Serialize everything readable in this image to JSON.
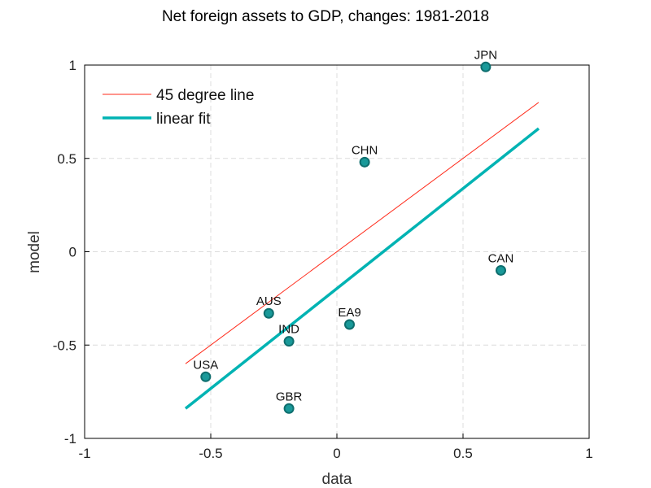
{
  "chart_data": {
    "type": "scatter",
    "title": "Net foreign assets to GDP, changes: 1981-2018",
    "xlabel": "data",
    "ylabel": "model",
    "xlim": [
      -1,
      1
    ],
    "ylim": [
      -1,
      1
    ],
    "x_ticks": [
      -1,
      -0.5,
      0,
      0.5,
      1
    ],
    "y_ticks": [
      -1,
      -0.5,
      0,
      0.5,
      1
    ],
    "x_tick_labels": [
      "-1",
      "-0.5",
      "0",
      "0.5",
      "1"
    ],
    "y_tick_labels": [
      "-1",
      "-0.5",
      "0",
      "0.5",
      "1"
    ],
    "grid": true,
    "legend_position": "top-left",
    "points": [
      {
        "label": "JPN",
        "x": 0.59,
        "y": 0.99
      },
      {
        "label": "CHN",
        "x": 0.11,
        "y": 0.48
      },
      {
        "label": "CAN",
        "x": 0.65,
        "y": -0.1
      },
      {
        "label": "AUS",
        "x": -0.27,
        "y": -0.33
      },
      {
        "label": "EA9",
        "x": 0.05,
        "y": -0.39
      },
      {
        "label": "IND",
        "x": -0.19,
        "y": -0.48
      },
      {
        "label": "USA",
        "x": -0.52,
        "y": -0.67
      },
      {
        "label": "GBR",
        "x": -0.19,
        "y": -0.84
      }
    ],
    "lines": [
      {
        "name": "45 degree line",
        "x": [
          -0.6,
          0.8
        ],
        "y": [
          -0.6,
          0.8
        ],
        "color": "#ff2a1a"
      },
      {
        "name": "linear fit",
        "x": [
          -0.6,
          0.8
        ],
        "y": [
          -0.84,
          0.66
        ],
        "color": "#00b3b3"
      }
    ],
    "marker_fill": "#199999",
    "marker_edge": "#0e6e6e"
  }
}
